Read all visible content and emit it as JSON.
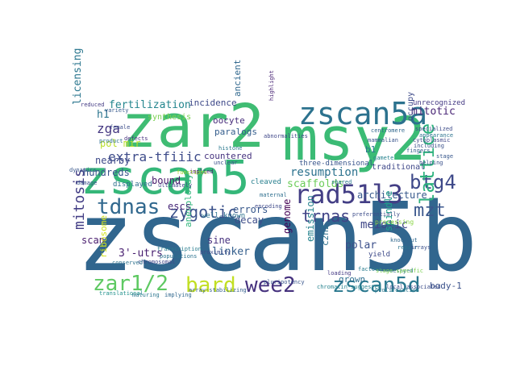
{
  "words": [
    {
      "text": "zscan5b",
      "color": "#31668e"
    },
    {
      "text": "zar2",
      "color": "#3fbc73"
    },
    {
      "text": "msy2",
      "color": "#3bbb75"
    },
    {
      "text": "zscan5",
      "color": "#35b779"
    },
    {
      "text": "zscan5a",
      "color": "#2c728e"
    },
    {
      "text": "rad51l3",
      "color": "#433e85"
    },
    {
      "text": "tdnas",
      "color": "#31688e"
    },
    {
      "text": "btg4",
      "color": "#3e4989"
    },
    {
      "text": "zar1/2",
      "color": "#5ec962"
    },
    {
      "text": "bard",
      "color": "#c2df23"
    },
    {
      "text": "wee2",
      "color": "#46327e"
    },
    {
      "text": "zscan5d",
      "color": "#2a788e"
    },
    {
      "text": "lattice",
      "color": "#2db27d"
    },
    {
      "text": "mzt",
      "color": "#39568c"
    },
    {
      "text": "zygotic",
      "color": "#3b528b"
    },
    {
      "text": "trnas",
      "color": "#414487"
    },
    {
      "text": "mitosis",
      "color": "#433e85"
    },
    {
      "text": "extra-tfiiic",
      "color": "#3e4c8a"
    },
    {
      "text": "resumption",
      "color": "#2c728e"
    },
    {
      "text": "zga",
      "color": "#453781"
    },
    {
      "text": "mitotic",
      "color": "#482475"
    },
    {
      "text": "fertilization",
      "color": "#24868e"
    },
    {
      "text": "licensing",
      "color": "#2a768e"
    },
    {
      "text": "scaffolds",
      "color": "#6ccd5a"
    },
    {
      "text": "architecture",
      "color": "#38598c"
    },
    {
      "text": "meiotic",
      "color": "#3f4788"
    },
    {
      "text": "spindle",
      "color": "#1f9e89"
    },
    {
      "text": "3'-utrs",
      "color": "#481f70"
    },
    {
      "text": "pol mir",
      "color": "#b8de29"
    },
    {
      "text": "aneuploidy",
      "color": "#31b57b"
    },
    {
      "text": "c2h2",
      "color": "#2d718e"
    },
    {
      "text": "polar",
      "color": "#3c508b"
    },
    {
      "text": "linker",
      "color": "#355f8d"
    },
    {
      "text": "sine",
      "color": "#46307e"
    },
    {
      "text": "genome",
      "color": "#440154"
    },
    {
      "text": "emission",
      "color": "#26828e"
    },
    {
      "text": "grown",
      "color": "#2e6e8e"
    },
    {
      "text": "body-1",
      "color": "#3b528b"
    },
    {
      "text": "errors",
      "color": "#38588c"
    },
    {
      "text": "decay",
      "color": "#3d4d8a"
    },
    {
      "text": "escs",
      "color": "#482878"
    },
    {
      "text": "bound",
      "color": "#481a6c"
    },
    {
      "text": "hundreds",
      "color": "#3a548c"
    },
    {
      "text": "nearby",
      "color": "#3e4a89"
    },
    {
      "text": "h1",
      "color": "#2b748e"
    },
    {
      "text": "oocyte",
      "color": "#472c7a"
    },
    {
      "text": "paralogs",
      "color": "#355e8d"
    },
    {
      "text": "incidence",
      "color": "#3e4989"
    },
    {
      "text": "ancient",
      "color": "#31688e"
    },
    {
      "text": "b1",
      "color": "#2a788e"
    },
    {
      "text": "countered",
      "color": "#46337f"
    },
    {
      "text": "traditional",
      "color": "#3f4889"
    },
    {
      "text": "occupy",
      "color": "#3e4a89"
    },
    {
      "text": "scan",
      "color": "#481b6d"
    },
    {
      "text": "synthesis",
      "color": "#7ad151"
    },
    {
      "text": "well-known",
      "color": "#2c718e"
    },
    {
      "text": "unrecognized",
      "color": "#443983"
    },
    {
      "text": "three-dimensional",
      "color": "#39558c"
    },
    {
      "text": "ribosome",
      "color": "#d2e21b"
    },
    {
      "text": "cleaved",
      "color": "#277f8e"
    },
    {
      "text": "yield",
      "color": "#3e4a89"
    },
    {
      "text": "displayed",
      "color": "#2e6f8e"
    },
    {
      "text": "translational",
      "color": "#21918c"
    },
    {
      "text": "populations",
      "color": "#2c738e"
    },
    {
      "text": "processing",
      "color": "#8bd646"
    },
    {
      "text": "specialized",
      "color": "#3e4c8a"
    },
    {
      "text": "ultimately",
      "color": "#404688"
    },
    {
      "text": "proliferation",
      "color": "#2a778e"
    },
    {
      "text": "chromatin-suggested",
      "color": "#26828e"
    },
    {
      "text": "local-associated",
      "color": "#3d4e8a"
    },
    {
      "text": "pluripotency",
      "color": "#39568c"
    },
    {
      "text": "array-stabilizing",
      "color": "#355f8d"
    },
    {
      "text": "implying",
      "color": "#31688e"
    },
    {
      "text": "maturing",
      "color": "#2a768e"
    },
    {
      "text": "delayed",
      "color": "#2e6e8e"
    },
    {
      "text": "including",
      "color": "#3b528b"
    },
    {
      "text": "chromosomal",
      "color": "#404588"
    },
    {
      "text": "conserved",
      "color": "#2c718e"
    },
    {
      "text": "transcription",
      "color": "#287c8e"
    },
    {
      "text": "variety",
      "color": "#37598c"
    },
    {
      "text": "reduced",
      "color": "#443b84"
    },
    {
      "text": "female",
      "color": "#3d4e8a"
    },
    {
      "text": "product",
      "color": "#2d708e"
    },
    {
      "text": "defects",
      "color": "#46307e"
    },
    {
      "text": "dynamics",
      "color": "#38588c"
    },
    {
      "text": "damage",
      "color": "#3a548c"
    },
    {
      "text": "implied",
      "color": "#481b6d"
    },
    {
      "text": "unclear",
      "color": "#3b518b"
    },
    {
      "text": "histone",
      "color": "#2a788e"
    },
    {
      "text": "abnormalities",
      "color": "#3f4788"
    },
    {
      "text": "highlight",
      "color": "#482475"
    },
    {
      "text": "preferentially",
      "color": "#3d4d8a"
    },
    {
      "text": "fingers",
      "color": "#355f8d"
    },
    {
      "text": "knockout",
      "color": "#31688e"
    },
    {
      "text": "repair",
      "color": "#2b748e"
    },
    {
      "text": "arrays",
      "color": "#3c508b"
    },
    {
      "text": "gamete",
      "color": "#26828e"
    },
    {
      "text": "maternal",
      "color": "#2e6f8e"
    },
    {
      "text": "mammalian",
      "color": "#39558c"
    },
    {
      "text": "encoding",
      "color": "#3e4989"
    },
    {
      "text": "stage-specific",
      "color": "#7ad151"
    },
    {
      "text": "cytoplasmic",
      "color": "#404688"
    },
    {
      "text": "appearance",
      "color": "#2c738e"
    },
    {
      "text": "functions",
      "color": "#a5db36"
    },
    {
      "text": "proximity",
      "color": "#3e4a89"
    },
    {
      "text": "shared",
      "color": "#2a778e"
    },
    {
      "text": "stage",
      "color": "#38588c"
    },
    {
      "text": "factors",
      "color": "#287c8e"
    },
    {
      "text": "helping",
      "color": "#3b528b"
    },
    {
      "text": "loading",
      "color": "#443983"
    },
    {
      "text": "centromere",
      "color": "#31688e"
    }
  ]
}
